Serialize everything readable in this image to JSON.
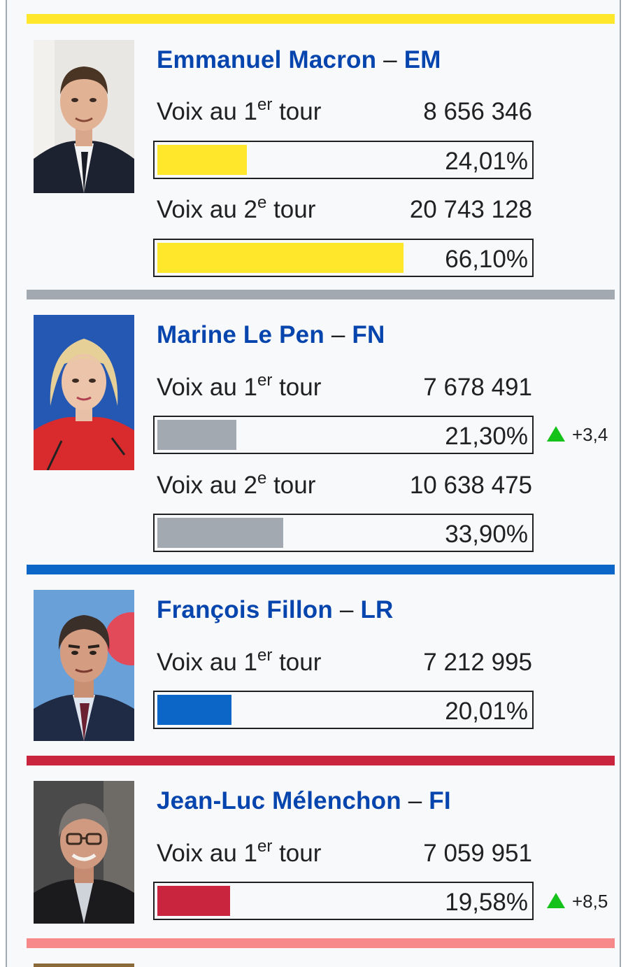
{
  "colors": {
    "em": "#ffe82b",
    "fn": "#a2a9b1",
    "lr": "#0b66c8",
    "fi": "#c9253f",
    "next": "#f7898a",
    "link": "#0645ad",
    "up_arrow": "#14c21a"
  },
  "candidates": [
    {
      "name": "Emmanuel Macron",
      "party": "EM",
      "photo": "portrait-photo",
      "round1": {
        "label_pre": "Voix au 1",
        "label_sup": "er",
        "label_post": " tour",
        "votes": "8 656 346",
        "pct_text": "24,01%",
        "pct": 24.01
      },
      "round2": {
        "label_pre": "Voix au 2",
        "label_sup": "e",
        "label_post": " tour",
        "votes": "20 743 128",
        "pct_text": "66,10%",
        "pct": 66.1
      }
    },
    {
      "name": "Marine Le Pen",
      "party": "FN",
      "photo": "portrait-photo",
      "round1": {
        "label_pre": "Voix au 1",
        "label_sup": "er",
        "label_post": " tour",
        "votes": "7 678 491",
        "pct_text": "21,30%",
        "pct": 21.3,
        "delta": "+3,4"
      },
      "round2": {
        "label_pre": "Voix au 2",
        "label_sup": "e",
        "label_post": " tour",
        "votes": "10 638 475",
        "pct_text": "33,90%",
        "pct": 33.9
      }
    },
    {
      "name": "François Fillon",
      "party": "LR",
      "photo": "portrait-photo",
      "round1": {
        "label_pre": "Voix au 1",
        "label_sup": "er",
        "label_post": " tour",
        "votes": "7 212 995",
        "pct_text": "20,01%",
        "pct": 20.01
      }
    },
    {
      "name": "Jean-Luc Mélenchon",
      "party": "FI",
      "photo": "portrait-photo",
      "round1": {
        "label_pre": "Voix au 1",
        "label_sup": "er",
        "label_post": " tour",
        "votes": "7 059 951",
        "pct_text": "19,58%",
        "pct": 19.58,
        "delta": "+8,5"
      }
    }
  ]
}
